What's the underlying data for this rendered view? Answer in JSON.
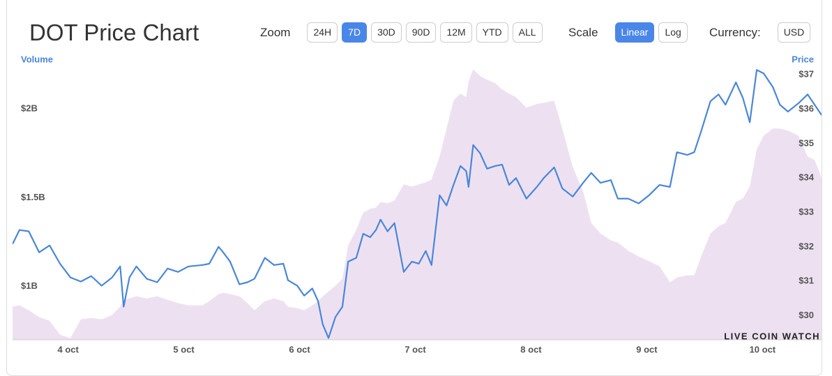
{
  "controls": {
    "zoom": {
      "label": "Zoom",
      "buttons": [
        {
          "label": "24H",
          "active": false
        },
        {
          "label": "7D",
          "active": true
        },
        {
          "label": "30D",
          "active": false
        },
        {
          "label": "90D",
          "active": false
        },
        {
          "label": "12M",
          "active": false
        },
        {
          "label": "YTD",
          "active": false
        },
        {
          "label": "ALL",
          "active": false
        }
      ]
    },
    "scale": {
      "label": "Scale",
      "buttons": [
        {
          "label": "Linear",
          "active": true
        },
        {
          "label": "Log",
          "active": false
        }
      ]
    },
    "currency": {
      "label": "Currency:",
      "buttons": [
        {
          "label": "USD",
          "active": false
        }
      ]
    }
  },
  "watermark": "LIVE COIN WATCH",
  "chart_data": {
    "type": "line",
    "title": "DOT Price Chart",
    "x": [
      3.52,
      3.58,
      3.66,
      3.75,
      3.84,
      3.93,
      4.02,
      4.11,
      4.2,
      4.29,
      4.38,
      4.45,
      4.48,
      4.53,
      4.59,
      4.68,
      4.77,
      4.86,
      4.95,
      5.04,
      5.16,
      5.22,
      5.3,
      5.34,
      5.4,
      5.48,
      5.55,
      5.61,
      5.7,
      5.78,
      5.86,
      5.9,
      5.98,
      6.04,
      6.11,
      6.16,
      6.2,
      6.25,
      6.31,
      6.37,
      6.42,
      6.49,
      6.55,
      6.61,
      6.66,
      6.7,
      6.76,
      6.82,
      6.9,
      6.97,
      7.03,
      7.09,
      7.14,
      7.21,
      7.27,
      7.33,
      7.39,
      7.44,
      7.46,
      7.5,
      7.56,
      7.62,
      7.69,
      7.75,
      7.81,
      7.87,
      7.96,
      8.05,
      8.11,
      8.2,
      8.27,
      8.36,
      8.45,
      8.52,
      8.6,
      8.69,
      8.75,
      8.84,
      8.93,
      9.02,
      9.11,
      9.2,
      9.26,
      9.35,
      9.41,
      9.47,
      9.55,
      9.62,
      9.68,
      9.77,
      9.83,
      9.89,
      9.95,
      10.01,
      10.09,
      10.15,
      10.22,
      10.31,
      10.39,
      10.45,
      10.51
    ],
    "xlim": [
      3.52,
      10.51
    ],
    "xticks": [
      {
        "value": 4,
        "label": "4 oct"
      },
      {
        "value": 5,
        "label": "5 oct"
      },
      {
        "value": 6,
        "label": "6 oct"
      },
      {
        "value": 7,
        "label": "7 oct"
      },
      {
        "value": 8,
        "label": "8 oct"
      },
      {
        "value": 9,
        "label": "9 oct"
      },
      {
        "value": 10,
        "label": "10 oct"
      }
    ],
    "ylim": [
      700000000,
      2280000000
    ],
    "yticks": [
      {
        "value": 1000000000,
        "label": "$1B"
      },
      {
        "value": 1500000000,
        "label": "$1.5B"
      },
      {
        "value": 2000000000,
        "label": "$2B"
      }
    ],
    "y2lim": [
      29.3,
      37.45
    ],
    "y2ticks": [
      {
        "value": 30,
        "label": "$30"
      },
      {
        "value": 31,
        "label": "$31"
      },
      {
        "value": 32,
        "label": "$32"
      },
      {
        "value": 33,
        "label": "$33"
      },
      {
        "value": 34,
        "label": "$34"
      },
      {
        "value": 35,
        "label": "$35"
      },
      {
        "value": 36,
        "label": "$36"
      },
      {
        "value": 37,
        "label": "$37"
      }
    ],
    "grid": false,
    "series": [
      {
        "name": "Volume",
        "type": "area",
        "color": "#ede1f1",
        "label_color": "#4a86d8",
        "values": [
          886000000,
          894000000,
          866000000,
          827000000,
          807000000,
          728000000,
          709000000,
          815000000,
          823000000,
          815000000,
          839000000,
          886000000,
          925000000,
          933000000,
          945000000,
          933000000,
          945000000,
          925000000,
          906000000,
          894000000,
          894000000,
          917000000,
          957000000,
          965000000,
          957000000,
          945000000,
          906000000,
          866000000,
          917000000,
          933000000,
          917000000,
          886000000,
          878000000,
          866000000,
          894000000,
          917000000,
          945000000,
          972000000,
          1004000000,
          1043000000,
          1232000000,
          1319000000,
          1417000000,
          1437000000,
          1445000000,
          1476000000,
          1469000000,
          1484000000,
          1575000000,
          1563000000,
          1575000000,
          1587000000,
          1602000000,
          1732000000,
          1890000000,
          2047000000,
          2087000000,
          2067000000,
          2154000000,
          2224000000,
          2185000000,
          2165000000,
          2146000000,
          2110000000,
          2087000000,
          2067000000,
          2008000000,
          2028000000,
          2035000000,
          2047000000,
          1890000000,
          1673000000,
          1535000000,
          1358000000,
          1299000000,
          1260000000,
          1248000000,
          1201000000,
          1169000000,
          1142000000,
          1114000000,
          1024000000,
          1051000000,
          1063000000,
          1063000000,
          1169000000,
          1299000000,
          1339000000,
          1358000000,
          1476000000,
          1496000000,
          1563000000,
          1772000000,
          1850000000,
          1890000000,
          1890000000,
          1878000000,
          1850000000,
          1732000000,
          1713000000,
          1614000000
        ]
      },
      {
        "name": "Price",
        "type": "line",
        "axis": "y2",
        "color": "#4a86d8",
        "label_color": "#4a86d8",
        "values": [
          32.08,
          32.49,
          32.45,
          31.84,
          32.04,
          31.51,
          31.11,
          30.99,
          31.15,
          30.87,
          31.11,
          31.43,
          30.26,
          31.11,
          31.43,
          31.07,
          30.97,
          31.37,
          31.27,
          31.43,
          31.47,
          31.51,
          32.0,
          31.84,
          31.57,
          30.91,
          30.97,
          31.07,
          31.68,
          31.47,
          31.51,
          31.03,
          30.87,
          30.58,
          30.79,
          30.42,
          29.75,
          29.35,
          29.96,
          30.26,
          31.57,
          31.68,
          32.38,
          32.28,
          32.49,
          32.79,
          32.45,
          32.69,
          31.27,
          31.57,
          31.51,
          31.88,
          31.47,
          33.5,
          33.2,
          33.8,
          34.35,
          34.2,
          33.74,
          34.96,
          34.72,
          34.27,
          34.35,
          34.39,
          33.8,
          34.0,
          33.4,
          33.74,
          34.0,
          34.31,
          33.7,
          33.46,
          33.86,
          34.15,
          33.86,
          33.94,
          33.4,
          33.4,
          33.26,
          33.5,
          33.8,
          33.74,
          34.75,
          34.67,
          34.75,
          35.36,
          36.23,
          36.43,
          36.13,
          36.78,
          36.33,
          35.62,
          37.14,
          37.04,
          36.64,
          36.13,
          35.93,
          36.17,
          36.43,
          36.13,
          35.83
        ]
      }
    ]
  }
}
